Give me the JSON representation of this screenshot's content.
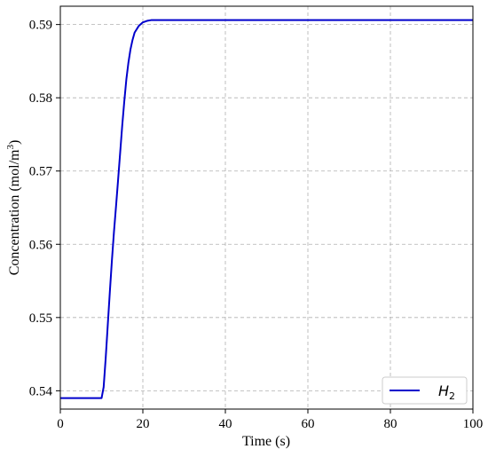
{
  "chart_data": {
    "type": "line",
    "title": "",
    "xlabel": "Time (s)",
    "ylabel": "Concentration (mol/m",
    "ylabel_sup": "3",
    "ylabel_close": ")",
    "xlim": [
      0,
      100
    ],
    "ylim": [
      0.5375,
      0.5925
    ],
    "xticks": [
      0,
      20,
      40,
      60,
      80,
      100
    ],
    "xtick_labels": [
      "0",
      "20",
      "40",
      "60",
      "80",
      "100"
    ],
    "yticks": [
      0.54,
      0.55,
      0.56,
      0.57,
      0.58,
      0.59
    ],
    "ytick_labels": [
      "0.54",
      "0.55",
      "0.56",
      "0.57",
      "0.58",
      "0.59"
    ],
    "grid": true,
    "legend_position": "bottom-right",
    "series": [
      {
        "name_base": "H",
        "name_sub": "2",
        "color": "#0000cc",
        "x": [
          0,
          10,
          10.5,
          11,
          11.5,
          12,
          12.5,
          13,
          13.5,
          14,
          14.5,
          15,
          15.5,
          16,
          16.5,
          17,
          17.5,
          18,
          19,
          20,
          21,
          22,
          23,
          25,
          30,
          40,
          60,
          80,
          100
        ],
        "y": [
          0.539,
          0.539,
          0.5405,
          0.5445,
          0.549,
          0.5535,
          0.5578,
          0.5617,
          0.5652,
          0.5688,
          0.5725,
          0.5762,
          0.5795,
          0.5825,
          0.5848,
          0.5866,
          0.5879,
          0.5889,
          0.5898,
          0.5903,
          0.5905,
          0.5906,
          0.5906,
          0.5906,
          0.5906,
          0.5906,
          0.5906,
          0.5906,
          0.5906
        ]
      }
    ]
  }
}
